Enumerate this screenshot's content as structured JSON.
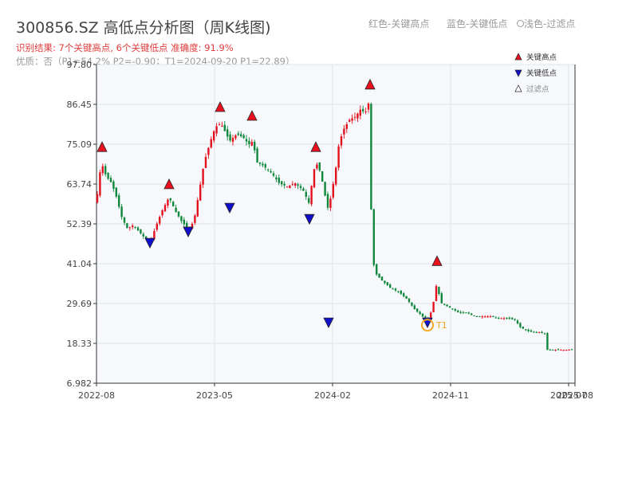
{
  "header": {
    "title": "300856.SZ 高低点分析图（周K线图)",
    "subtitle": "识别结果: 7个关键高点, 6个关键低点  准确度: 91.9%",
    "info": "优质：否（P1=54.2%  P2=-0.90；T1=2024-09-20 P1=22.89）",
    "legend_high": "红色-关键高点",
    "legend_low": "蓝色-关键低点",
    "legend_filtered": "浅色-过滤点"
  },
  "colors": {
    "up": "#e3101e",
    "down": "#10883b",
    "high_marker": "#e8101e",
    "low_marker": "#1010cc",
    "t1_circle": "#f5a623",
    "plot_bg": "#f6f8fb"
  },
  "chart_data": {
    "type": "candlestick",
    "y_ticks": [
      "6.982",
      "18.33",
      "29.69",
      "41.04",
      "52.39",
      "63.74",
      "75.09",
      "86.45",
      "97.80"
    ],
    "ylim": [
      6.982,
      97.8
    ],
    "x_ticks": [
      "2022-08",
      "2023-05",
      "2024-02",
      "2024-11",
      "2025-07",
      "2025-08"
    ],
    "legend": [
      "关键高点",
      "关键低点",
      "过滤点"
    ],
    "annotation": "T1",
    "key_highs": [
      72.1,
      61.5,
      83.5,
      81.0,
      72.1,
      89.9,
      39.6
    ],
    "key_lows": [
      46.0,
      49.2,
      56.0,
      52.8,
      23.3,
      23.3
    ]
  }
}
